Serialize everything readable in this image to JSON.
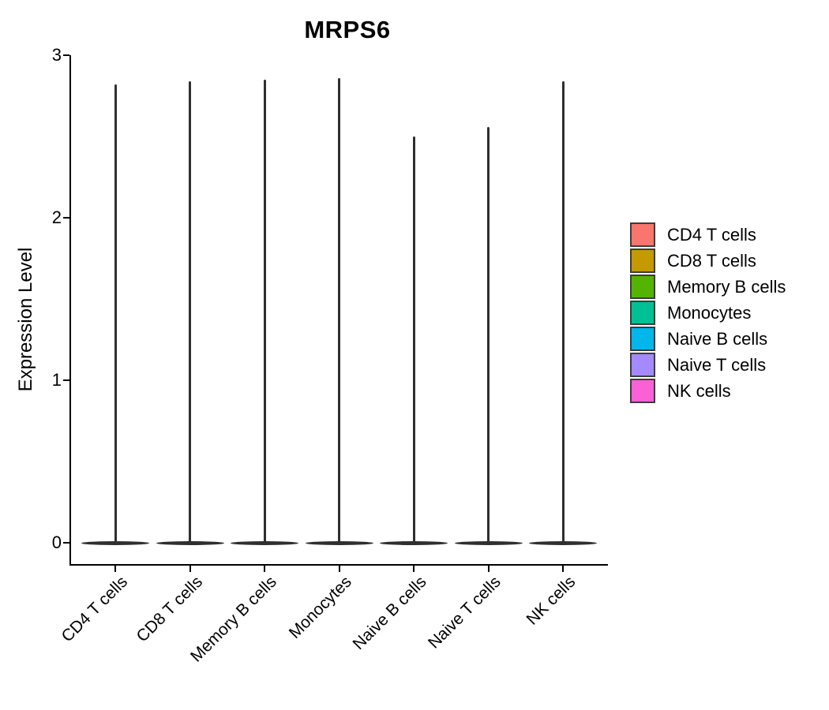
{
  "chart_data": {
    "type": "violin",
    "title": "MRPS6",
    "ylabel": "Expression Level",
    "xlabel": "",
    "ylim": [
      0,
      3
    ],
    "yticks": [
      0,
      1,
      2,
      3
    ],
    "grid": false,
    "legend_position": "right",
    "categories": [
      "CD4 T cells",
      "CD8 T cells",
      "Memory B cells",
      "Monocytes",
      "Naive B cells",
      "Naive T cells",
      "NK cells"
    ],
    "violins": [
      {
        "category": "CD4 T cells",
        "color": "#F8766D",
        "max_expression": 2.82,
        "body_value": 0
      },
      {
        "category": "CD8 T cells",
        "color": "#C49A00",
        "max_expression": 2.84,
        "body_value": 0
      },
      {
        "category": "Memory B cells",
        "color": "#53B400",
        "max_expression": 2.85,
        "body_value": 0
      },
      {
        "category": "Monocytes",
        "color": "#00C094",
        "max_expression": 2.86,
        "body_value": 0
      },
      {
        "category": "Naive B cells",
        "color": "#00B6EB",
        "max_expression": 2.5,
        "body_value": 0
      },
      {
        "category": "Naive T cells",
        "color": "#A58AFF",
        "max_expression": 2.56,
        "body_value": 0
      },
      {
        "category": "NK cells",
        "color": "#FB61D7",
        "max_expression": 2.84,
        "body_value": 0
      }
    ],
    "legend_entries": [
      {
        "label": "CD4 T cells",
        "color": "#F8766D"
      },
      {
        "label": "CD8 T cells",
        "color": "#C49A00"
      },
      {
        "label": "Memory B cells",
        "color": "#53B400"
      },
      {
        "label": "Monocytes",
        "color": "#00C094"
      },
      {
        "label": "Naive B cells",
        "color": "#00B6EB"
      },
      {
        "label": "Naive T cells",
        "color": "#A58AFF"
      },
      {
        "label": "NK cells",
        "color": "#FB61D7"
      }
    ],
    "outline_color": "#2F2F2F",
    "axis_color": "#000000",
    "legend_swatch_border_color": "#3C3C3C"
  }
}
